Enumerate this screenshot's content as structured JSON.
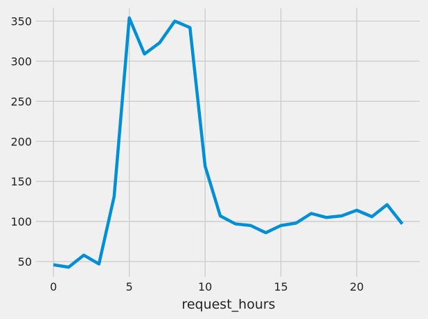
{
  "chart_data": {
    "type": "line",
    "xlabel": "request_hours",
    "ylabel": "",
    "title": "",
    "xlim": [
      -1.15,
      24.15
    ],
    "ylim": [
      31,
      366
    ],
    "xticks": [
      0,
      5,
      10,
      15,
      20
    ],
    "yticks": [
      50,
      100,
      150,
      200,
      250,
      300,
      350
    ],
    "grid": true,
    "x": [
      0,
      1,
      2,
      3,
      4,
      5,
      6,
      7,
      8,
      9,
      10,
      11,
      12,
      13,
      14,
      15,
      16,
      17,
      18,
      19,
      20,
      21,
      22,
      23
    ],
    "series": [
      {
        "color": "#008fd5",
        "values": [
          46,
          43,
          58,
          47,
          131,
          354,
          309,
          323,
          350,
          342,
          169,
          107,
          97,
          95,
          86,
          95,
          98,
          110,
          105,
          107,
          114,
          106,
          121,
          97
        ]
      }
    ]
  }
}
